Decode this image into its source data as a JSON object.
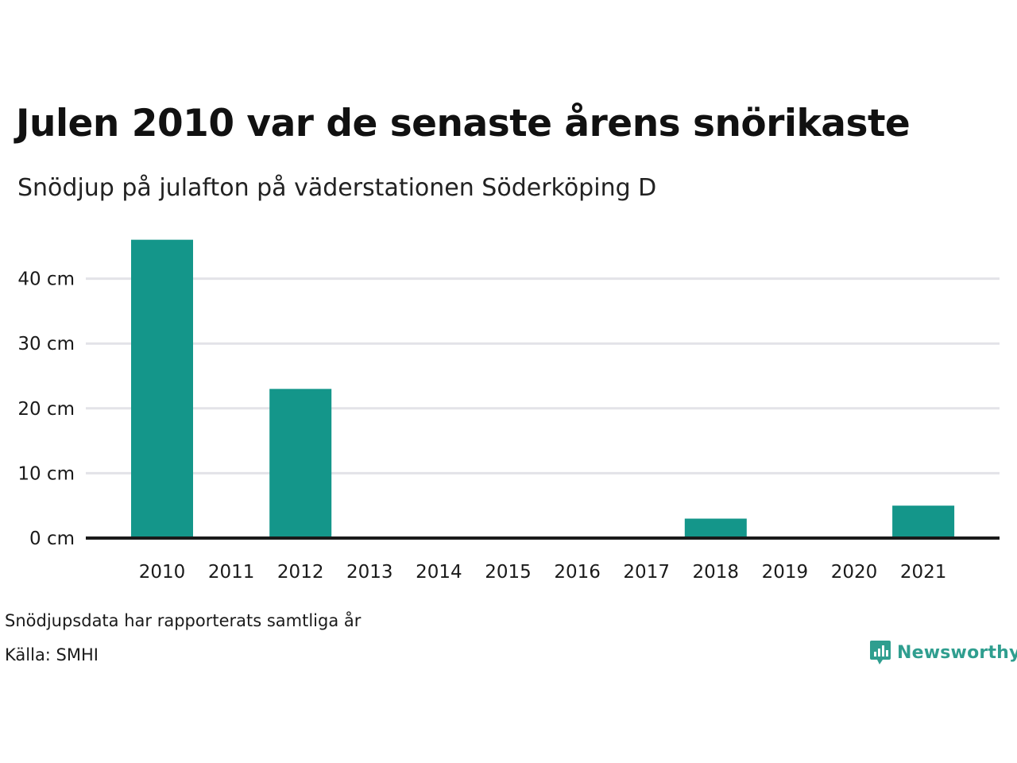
{
  "header": {
    "title": "Julen 2010 var de senaste årens snörikaste",
    "subtitle": "Snödjup på julafton på väderstationen Söderköping D"
  },
  "footer": {
    "note": "Snödjupsdata har rapporterats samtliga år",
    "source": "Källa: SMHI",
    "brand": "Newsworthy"
  },
  "colors": {
    "bar": "#14968a",
    "grid": "#e3e3e8",
    "baseline": "#1a1a1a",
    "brand": "#2f9e8f"
  },
  "chart_data": {
    "type": "bar",
    "title": "Julen 2010 var de senaste årens snörikaste",
    "subtitle": "Snödjup på julafton på väderstationen Söderköping D",
    "categories": [
      "2010",
      "2011",
      "2012",
      "2013",
      "2014",
      "2015",
      "2016",
      "2017",
      "2018",
      "2019",
      "2020",
      "2021"
    ],
    "values": [
      46,
      0,
      23,
      0,
      0,
      0,
      0,
      0,
      3,
      0,
      0,
      5
    ],
    "unit": "cm",
    "yticks": [
      0,
      10,
      20,
      30,
      40
    ],
    "ytick_labels": [
      "0 cm",
      "10 cm",
      "20 cm",
      "30 cm",
      "40 cm"
    ],
    "ylim": [
      0,
      46
    ],
    "grid": true,
    "legend": "none"
  }
}
